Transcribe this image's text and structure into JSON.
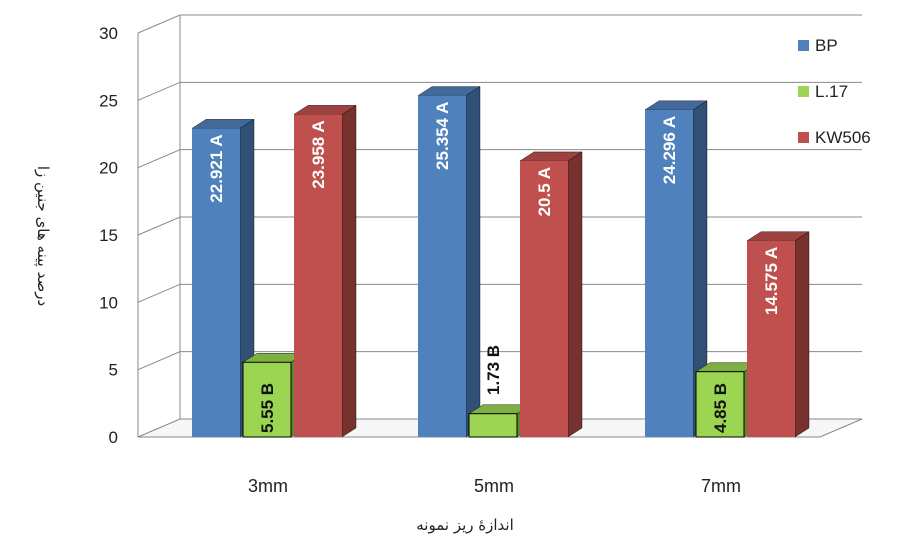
{
  "chart_data": {
    "type": "bar",
    "style": "3d-clustered-column",
    "categories": [
      "3mm",
      "5mm",
      "7mm"
    ],
    "ylabel": "درصد پینه های جنین زا",
    "xlabel": "اندازهٔ ریز نمونه",
    "ylim": [
      0,
      30
    ],
    "yticks": [
      "0",
      "5",
      "10",
      "15",
      "20",
      "25",
      "30"
    ],
    "grid": true,
    "legend_position": "right",
    "series": [
      {
        "name": "BP",
        "color": "#4F81BD",
        "values": [
          22.921,
          25.354,
          24.296
        ],
        "labels": [
          "22.921 A",
          "25.354 A",
          "24.296 A"
        ]
      },
      {
        "name": "L.17",
        "color": "#9BD551",
        "values": [
          5.55,
          1.73,
          4.85
        ],
        "labels": [
          "5.55 B",
          "1.73 B",
          "4.85 B"
        ]
      },
      {
        "name": "KW506",
        "color": "#C0504D",
        "values": [
          23.958,
          20.5,
          14.575
        ],
        "labels": [
          "23.958 A",
          "20.5 A",
          "14.575 A"
        ]
      }
    ]
  }
}
